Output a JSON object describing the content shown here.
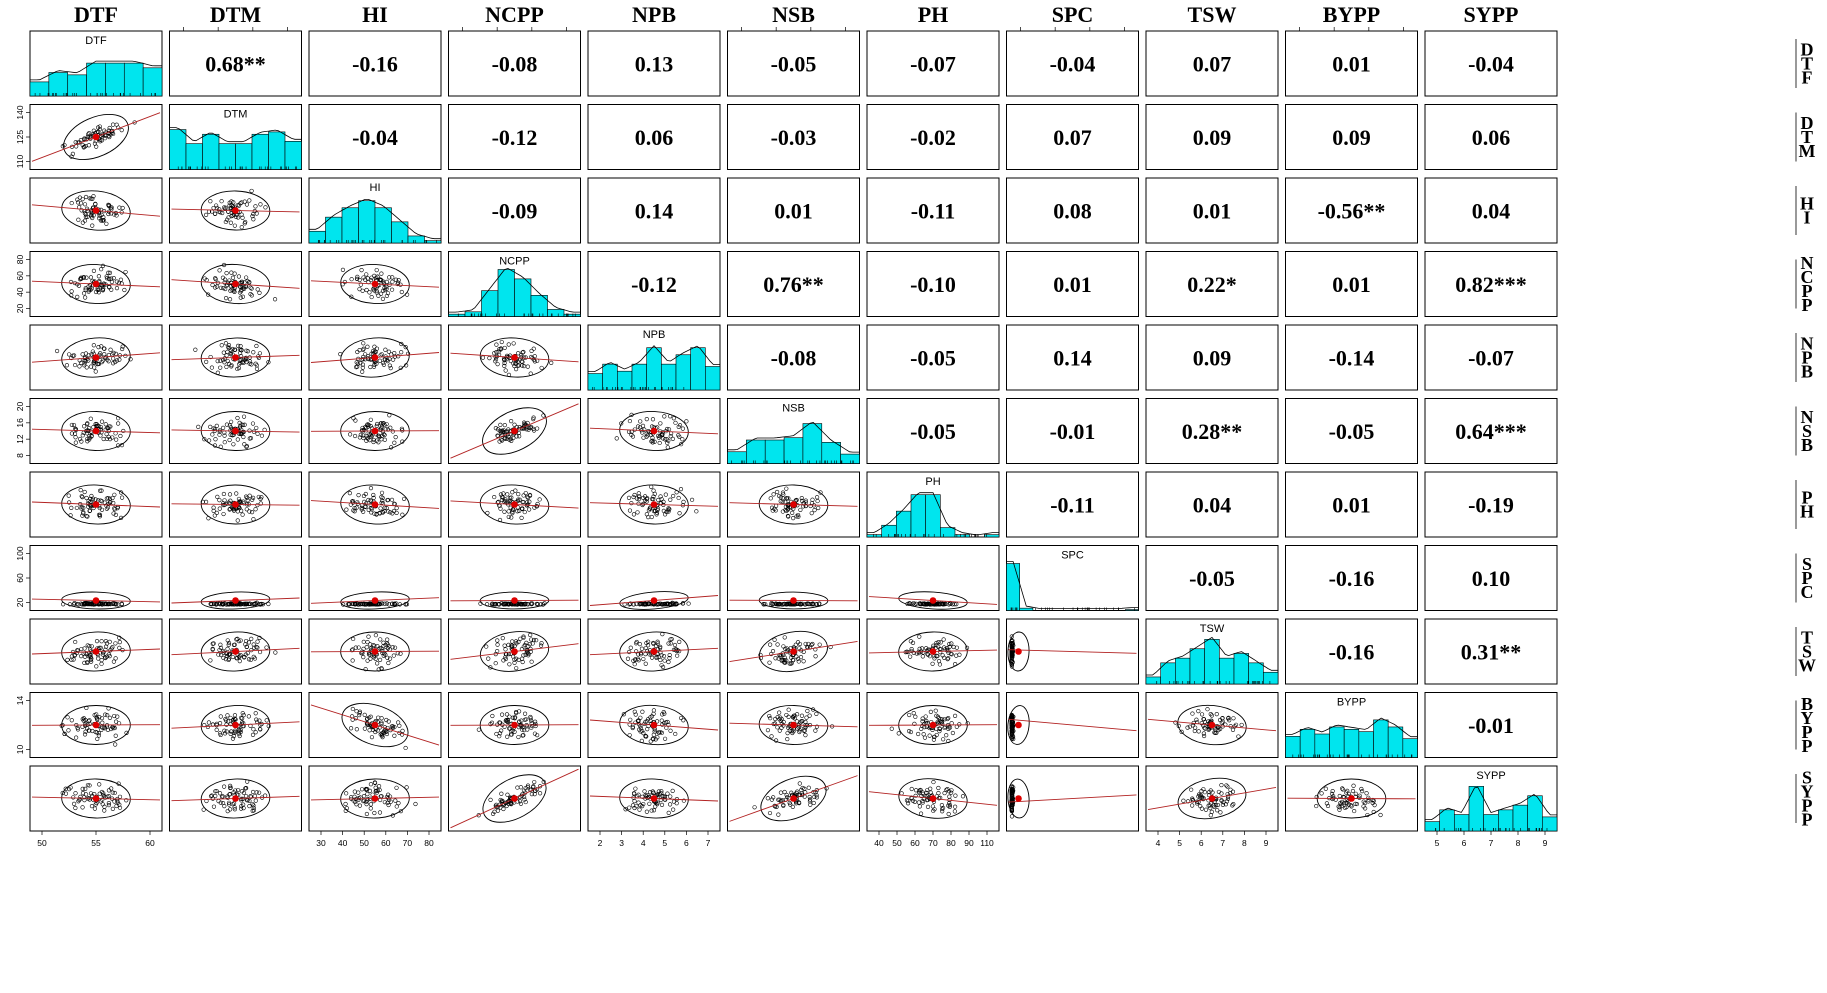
{
  "chart_data": {
    "type": "scatter",
    "title": "",
    "variables": [
      "DTF",
      "DTM",
      "HI",
      "NCPP",
      "NPB",
      "NSB",
      "PH",
      "SPC",
      "TSW",
      "BYPP",
      "SYPP"
    ],
    "correlations": [
      [
        "",
        "0.68**",
        "-0.16",
        "-0.08",
        "0.13",
        "-0.05",
        "-0.07",
        "-0.04",
        "0.07",
        "0.01",
        "-0.04"
      ],
      [
        "",
        "",
        "-0.04",
        "-0.12",
        "0.06",
        "-0.03",
        "-0.02",
        "0.07",
        "0.09",
        "0.09",
        "0.06"
      ],
      [
        "",
        "",
        "",
        "-0.09",
        "0.14",
        "0.01",
        "-0.11",
        "0.08",
        "0.01",
        "-0.56**",
        "0.04"
      ],
      [
        "",
        "",
        "",
        "",
        "-0.12",
        "0.76**",
        "-0.10",
        "0.01",
        "0.22*",
        "0.01",
        "0.82***"
      ],
      [
        "",
        "",
        "",
        "",
        "",
        "-0.08",
        "-0.05",
        "0.14",
        "0.09",
        "-0.14",
        "-0.07"
      ],
      [
        "",
        "",
        "",
        "",
        "",
        "",
        "-0.05",
        "-0.01",
        "0.28**",
        "-0.05",
        "0.64***"
      ],
      [
        "",
        "",
        "",
        "",
        "",
        "",
        "",
        "-0.11",
        "0.04",
        "0.01",
        "-0.19"
      ],
      [
        "",
        "",
        "",
        "",
        "",
        "",
        "",
        "",
        "-0.05",
        "-0.16",
        "0.10"
      ],
      [
        "",
        "",
        "",
        "",
        "",
        "",
        "",
        "",
        "",
        "-0.16",
        "0.31**"
      ],
      [
        "",
        "",
        "",
        "",
        "",
        "",
        "",
        "",
        "",
        "",
        "-0.01"
      ],
      [
        "",
        "",
        "",
        "",
        "",
        "",
        "",
        "",
        "",
        "",
        ""
      ]
    ],
    "x_ticks": {
      "DTF": [
        "50",
        "55",
        "60"
      ],
      "HI": [
        "30",
        "40",
        "50",
        "60",
        "70",
        "80"
      ],
      "NPB": [
        "2",
        "3",
        "4",
        "5",
        "6",
        "7"
      ],
      "PH": [
        "40",
        "50",
        "60",
        "70",
        "80",
        "90",
        "110"
      ],
      "TSW": [
        "4",
        "5",
        "6",
        "7",
        "8",
        "9"
      ],
      "SYPP": [
        "5",
        "6",
        "7",
        "8",
        "9"
      ]
    },
    "y_ticks": {
      "DTM": [
        "110",
        "125",
        "140"
      ],
      "NCPP": [
        "20",
        "40",
        "60",
        "80"
      ],
      "NSB": [
        "8",
        "12",
        "16",
        "20"
      ],
      "SPC": [
        "20",
        "60",
        "100"
      ],
      "BYPP": [
        "10",
        "14"
      ]
    },
    "histograms": {
      "DTF": [
        0.3,
        0.5,
        0.45,
        0.7,
        0.7,
        0.7,
        0.6
      ],
      "DTM": [
        0.85,
        0.55,
        0.75,
        0.55,
        0.55,
        0.75,
        0.8,
        0.6
      ],
      "HI": [
        0.25,
        0.55,
        0.75,
        0.9,
        0.75,
        0.45,
        0.15,
        0.05
      ],
      "NCPP": [
        0.05,
        0.1,
        0.55,
        1.0,
        0.8,
        0.45,
        0.15,
        0.05
      ],
      "NPB": [
        0.35,
        0.55,
        0.4,
        0.55,
        0.9,
        0.55,
        0.75,
        0.9,
        0.5
      ],
      "NSB": [
        0.25,
        0.5,
        0.5,
        0.55,
        0.85,
        0.45,
        0.2
      ],
      "PH": [
        0.05,
        0.25,
        0.55,
        0.9,
        0.9,
        0.2,
        0.05,
        0.0,
        0.05
      ],
      "SPC": [
        1.0,
        0.05,
        0.0,
        0.0,
        0.0,
        0.0,
        0.0,
        0.0,
        0.0,
        0.02
      ],
      "TSW": [
        0.15,
        0.45,
        0.55,
        0.75,
        0.95,
        0.55,
        0.65,
        0.45,
        0.25
      ],
      "BYPP": [
        0.45,
        0.6,
        0.5,
        0.65,
        0.6,
        0.55,
        0.8,
        0.65,
        0.4
      ],
      "SYPP": [
        0.2,
        0.45,
        0.35,
        0.95,
        0.35,
        0.45,
        0.55,
        0.75,
        0.3
      ]
    },
    "colors": {
      "histogram": "#00e5ee",
      "ellipse": "#000000",
      "smoother": "#b22222",
      "center": "#dd0000"
    }
  }
}
